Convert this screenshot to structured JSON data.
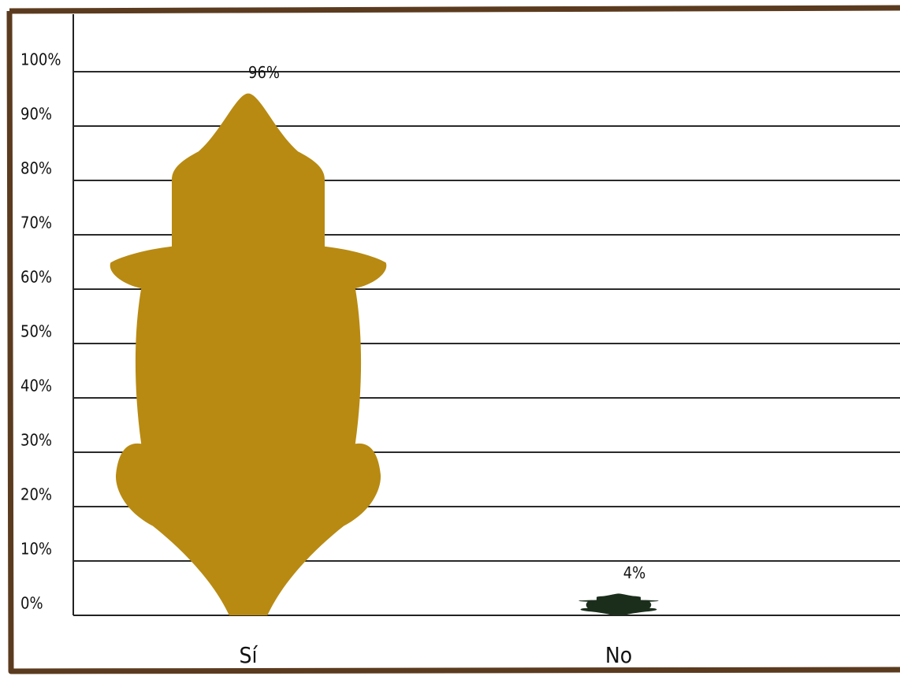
{
  "chart_data": {
    "type": "bar",
    "categories": [
      "Sí",
      "No"
    ],
    "values": [
      96,
      4
    ],
    "value_labels": [
      "96%",
      "4%"
    ],
    "colors": [
      "#b88a12",
      "#1b2e1c"
    ],
    "ylim": [
      0,
      100
    ],
    "yticks": [
      {
        "value": 0,
        "label": "0%"
      },
      {
        "value": 10,
        "label": "10%"
      },
      {
        "value": 20,
        "label": "20%"
      },
      {
        "value": 30,
        "label": "30%"
      },
      {
        "value": 40,
        "label": "40%"
      },
      {
        "value": 50,
        "label": "50%"
      },
      {
        "value": 60,
        "label": "60%"
      },
      {
        "value": 70,
        "label": "70%"
      },
      {
        "value": 80,
        "label": "80%"
      },
      {
        "value": 90,
        "label": "90%"
      },
      {
        "value": 100,
        "label": "100%"
      }
    ],
    "grid": true
  }
}
